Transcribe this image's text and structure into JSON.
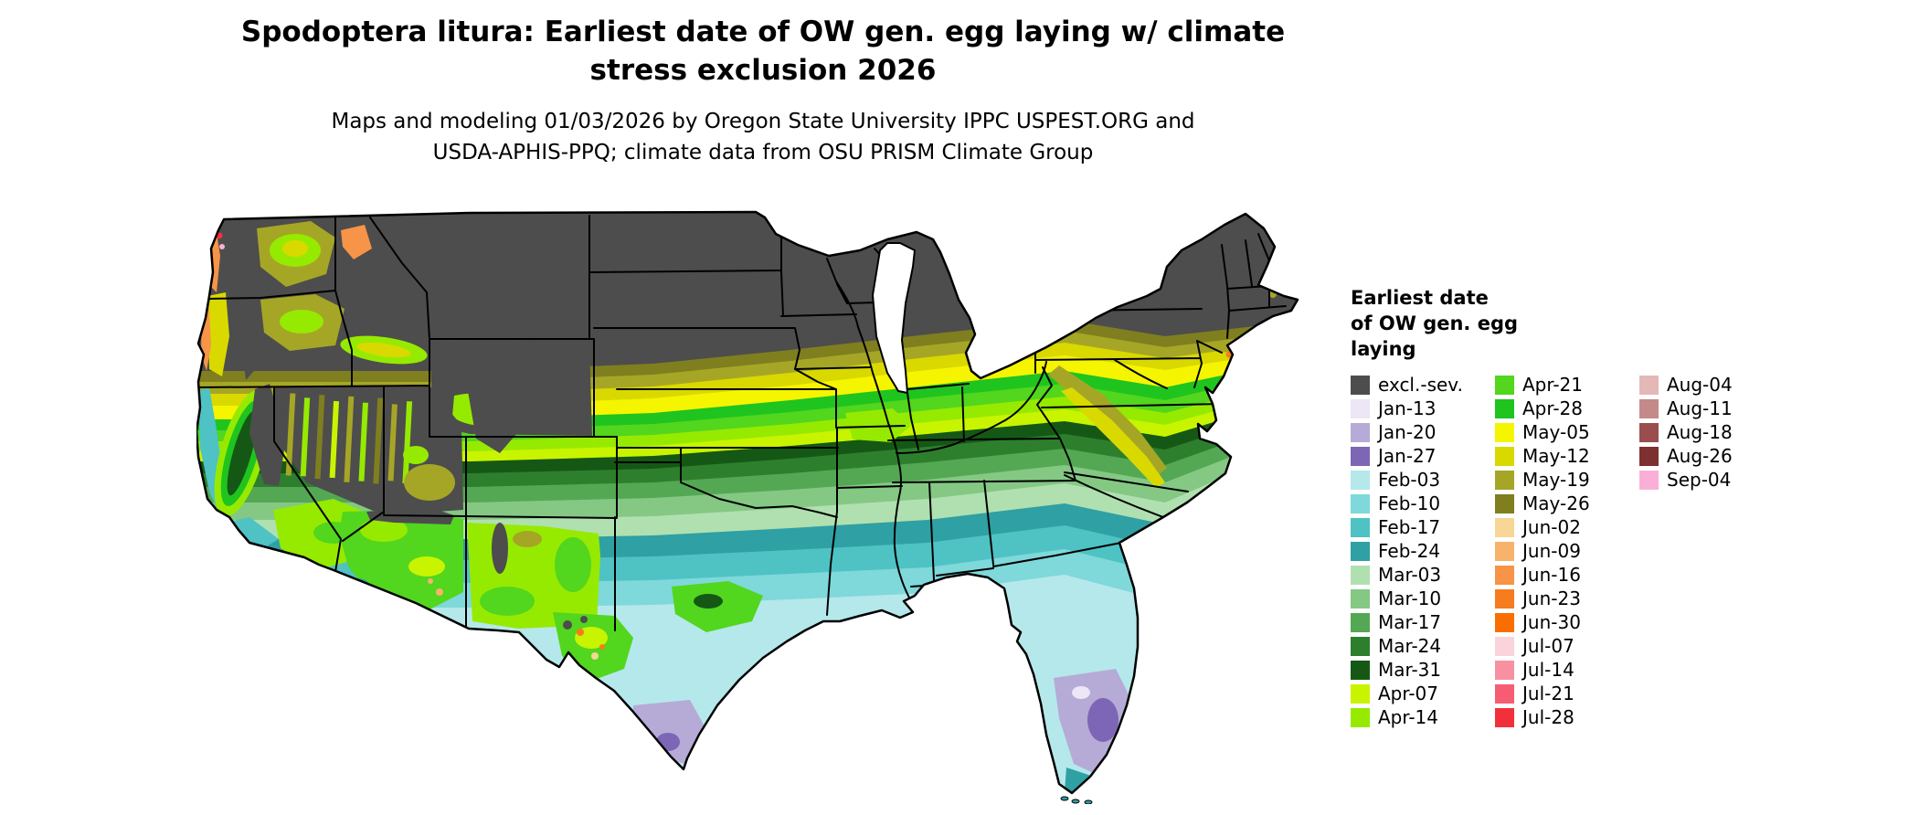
{
  "header": {
    "title_line1": "Spodoptera litura: Earliest date of OW gen. egg laying w/ climate",
    "title_line2": "stress exclusion 2026",
    "subtitle_line1": "Maps and modeling 01/03/2026 by Oregon State University IPPC USPEST.ORG and",
    "subtitle_line2": "USDA-APHIS-PPQ; climate data from OSU PRISM Climate Group"
  },
  "legend": {
    "title_lines": [
      "Earliest date",
      "of OW gen. egg",
      "laying"
    ],
    "columns": [
      {
        "items": [
          {
            "label": "excl.-sev.",
            "color": "#4d4d4d"
          },
          {
            "label": "Jan-13",
            "color": "#ece6f5"
          },
          {
            "label": "Jan-20",
            "color": "#b5abd6"
          },
          {
            "label": "Jan-27",
            "color": "#7d66b5"
          },
          {
            "label": "Feb-03",
            "color": "#b5e8ea"
          },
          {
            "label": "Feb-10",
            "color": "#7fd8da"
          },
          {
            "label": "Feb-17",
            "color": "#4fc2c4"
          },
          {
            "label": "Feb-24",
            "color": "#2fa0a4"
          },
          {
            "label": "Mar-03",
            "color": "#b0e0b0"
          },
          {
            "label": "Mar-10",
            "color": "#84c884"
          },
          {
            "label": "Mar-17",
            "color": "#54a854"
          },
          {
            "label": "Mar-24",
            "color": "#2d7f2d"
          },
          {
            "label": "Mar-31",
            "color": "#155815"
          },
          {
            "label": "Apr-07",
            "color": "#c8f400"
          },
          {
            "label": "Apr-14",
            "color": "#96ea00"
          }
        ]
      },
      {
        "items": [
          {
            "label": "Apr-21",
            "color": "#52d61e"
          },
          {
            "label": "Apr-28",
            "color": "#1fc41f"
          },
          {
            "label": "May-05",
            "color": "#f5f500"
          },
          {
            "label": "May-12",
            "color": "#d9d900"
          },
          {
            "label": "May-19",
            "color": "#a6a626"
          },
          {
            "label": "May-26",
            "color": "#7f7f1f"
          },
          {
            "label": "Jun-02",
            "color": "#f7d696"
          },
          {
            "label": "Jun-09",
            "color": "#f7b36b"
          },
          {
            "label": "Jun-16",
            "color": "#f79447"
          },
          {
            "label": "Jun-23",
            "color": "#f77b1f"
          },
          {
            "label": "Jun-30",
            "color": "#fa6e00"
          },
          {
            "label": "Jul-07",
            "color": "#fad4da"
          },
          {
            "label": "Jul-14",
            "color": "#f791a1"
          },
          {
            "label": "Jul-21",
            "color": "#f75d72"
          },
          {
            "label": "Jul-28",
            "color": "#f2303c"
          }
        ]
      },
      {
        "items": [
          {
            "label": "Aug-04",
            "color": "#e5b8b8"
          },
          {
            "label": "Aug-11",
            "color": "#c48a8a"
          },
          {
            "label": "Aug-18",
            "color": "#9a4d4d"
          },
          {
            "label": "Aug-26",
            "color": "#7d3030"
          },
          {
            "label": "Sep-04",
            "color": "#fab0d6"
          }
        ]
      }
    ]
  }
}
